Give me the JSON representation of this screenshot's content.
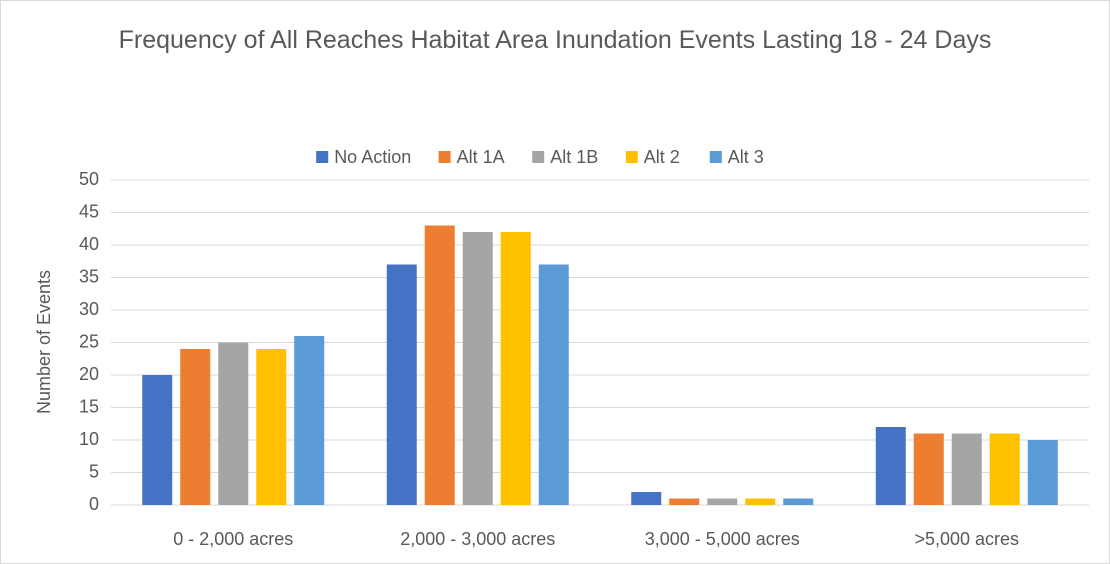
{
  "chart_data": {
    "type": "bar",
    "title": "Frequency of All Reaches Habitat Area Inundation Events Lasting 18 - 24 Days",
    "y_label": "Number of Events",
    "categories": [
      "0 - 2,000 acres",
      "2,000 - 3,000 acres",
      "3,000 - 5,000 acres",
      ">5,000 acres"
    ],
    "series": [
      {
        "name": "No Action",
        "color": "#4472c4",
        "values": [
          20,
          37,
          2,
          12
        ]
      },
      {
        "name": "Alt 1A",
        "color": "#ed7d31",
        "values": [
          24,
          43,
          1,
          11
        ]
      },
      {
        "name": "Alt 1B",
        "color": "#a5a5a5",
        "values": [
          25,
          42,
          1,
          11
        ]
      },
      {
        "name": "Alt 2",
        "color": "#ffc000",
        "values": [
          24,
          42,
          1,
          11
        ]
      },
      {
        "name": "Alt 3",
        "color": "#5b9bd5",
        "values": [
          26,
          37,
          1,
          10
        ]
      }
    ],
    "ylim": [
      0,
      50
    ],
    "yticks": [
      0,
      5,
      10,
      15,
      20,
      25,
      30,
      35,
      40,
      45,
      50
    ],
    "grid": true,
    "legend": "top"
  }
}
